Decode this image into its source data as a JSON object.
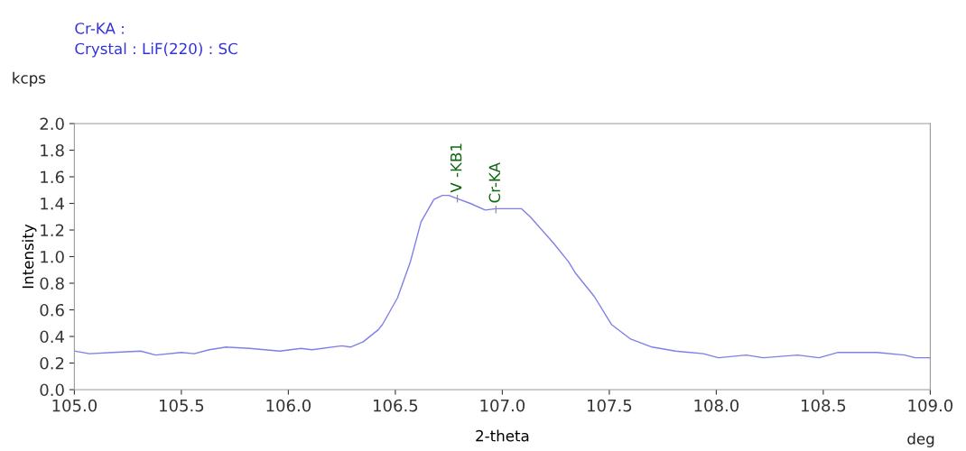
{
  "chart_data": {
    "type": "line",
    "title": "Cr-KA :",
    "subtitle": "Crystal : LiF(220) : SC",
    "xlabel": "2-theta",
    "ylabel": "Intensity",
    "annotations": [
      "kcps",
      "deg",
      {
        "text": "V -KB1",
        "x": 106.79,
        "y": 1.44
      },
      {
        "text": "Cr-KA",
        "x": 106.97,
        "y": 1.36
      }
    ],
    "series": [
      {
        "color": "#7f7fe8",
        "x": [
          105.0,
          105.07,
          105.18,
          105.31,
          105.38,
          105.5,
          105.56,
          105.63,
          105.71,
          105.82,
          105.96,
          106.06,
          106.11,
          106.25,
          106.29,
          106.35,
          106.42,
          106.44,
          106.51,
          106.57,
          106.62,
          106.68,
          106.72,
          106.75,
          106.85,
          106.92,
          106.97,
          107.09,
          107.13,
          107.24,
          107.31,
          107.34,
          107.43,
          107.51,
          107.6,
          107.7,
          107.81,
          107.94,
          108.01,
          108.14,
          108.22,
          108.38,
          108.48,
          108.57,
          108.75,
          108.88,
          108.93,
          109.0
        ],
        "values": [
          0.29,
          0.27,
          0.28,
          0.29,
          0.26,
          0.28,
          0.27,
          0.3,
          0.32,
          0.31,
          0.29,
          0.31,
          0.3,
          0.33,
          0.32,
          0.36,
          0.45,
          0.49,
          0.69,
          0.96,
          1.26,
          1.43,
          1.46,
          1.46,
          1.4,
          1.35,
          1.36,
          1.36,
          1.3,
          1.1,
          0.96,
          0.88,
          0.7,
          0.49,
          0.38,
          0.32,
          0.29,
          0.27,
          0.24,
          0.26,
          0.24,
          0.26,
          0.24,
          0.28,
          0.28,
          0.26,
          0.24,
          0.24
        ]
      }
    ],
    "xlim": [
      105.0,
      109.0
    ],
    "xticks": [
      {
        "value": 105.0,
        "label": "105.0"
      },
      {
        "value": 105.5,
        "label": "105.5"
      },
      {
        "value": 106.0,
        "label": "106.0"
      },
      {
        "value": 106.5,
        "label": "106.5"
      },
      {
        "value": 107.0,
        "label": "107.0"
      },
      {
        "value": 107.5,
        "label": "107.5"
      },
      {
        "value": 108.0,
        "label": "108.0"
      },
      {
        "value": 108.5,
        "label": "108.5"
      },
      {
        "value": 109.0,
        "label": "109.0"
      }
    ],
    "ylim": [
      0.0,
      2.0
    ],
    "yticks": [
      {
        "value": 0.0,
        "label": "0.0"
      },
      {
        "value": 0.2,
        "label": "0.2"
      },
      {
        "value": 0.4,
        "label": "0.4"
      },
      {
        "value": 0.6,
        "label": "0.6"
      },
      {
        "value": 0.8,
        "label": "0.8"
      },
      {
        "value": 1.0,
        "label": "1.0"
      },
      {
        "value": 1.2,
        "label": "1.2"
      },
      {
        "value": 1.4,
        "label": "1.4"
      },
      {
        "value": 1.6,
        "label": "1.6"
      },
      {
        "value": 1.8,
        "label": "1.8"
      },
      {
        "value": 2.0,
        "label": "2.0"
      }
    ],
    "grid": false,
    "legend": false,
    "marker": "none",
    "line_style": "solid"
  }
}
